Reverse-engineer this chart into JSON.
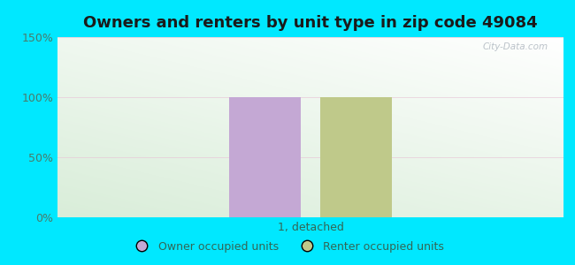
{
  "title": "Owners and renters by unit type in zip code 49084",
  "categories": [
    "1, detached"
  ],
  "owner_values": [
    100
  ],
  "renter_values": [
    100
  ],
  "owner_color": "#c4a8d4",
  "renter_color": "#bfc98a",
  "ylim": [
    0,
    150
  ],
  "yticks": [
    0,
    50,
    100,
    150
  ],
  "ytick_labels": [
    "0%",
    "50%",
    "100%",
    "150%"
  ],
  "legend_owner": "Owner occupied units",
  "legend_renter": "Renter occupied units",
  "outer_bg": "#00e8ff",
  "watermark": "City-Data.com",
  "bar_width": 0.28,
  "bar_gap": 0.08,
  "title_fontsize": 13,
  "tick_fontsize": 9,
  "legend_fontsize": 9,
  "label_fontsize": 9,
  "tick_color": "#4a7a6a",
  "label_color": "#336655"
}
